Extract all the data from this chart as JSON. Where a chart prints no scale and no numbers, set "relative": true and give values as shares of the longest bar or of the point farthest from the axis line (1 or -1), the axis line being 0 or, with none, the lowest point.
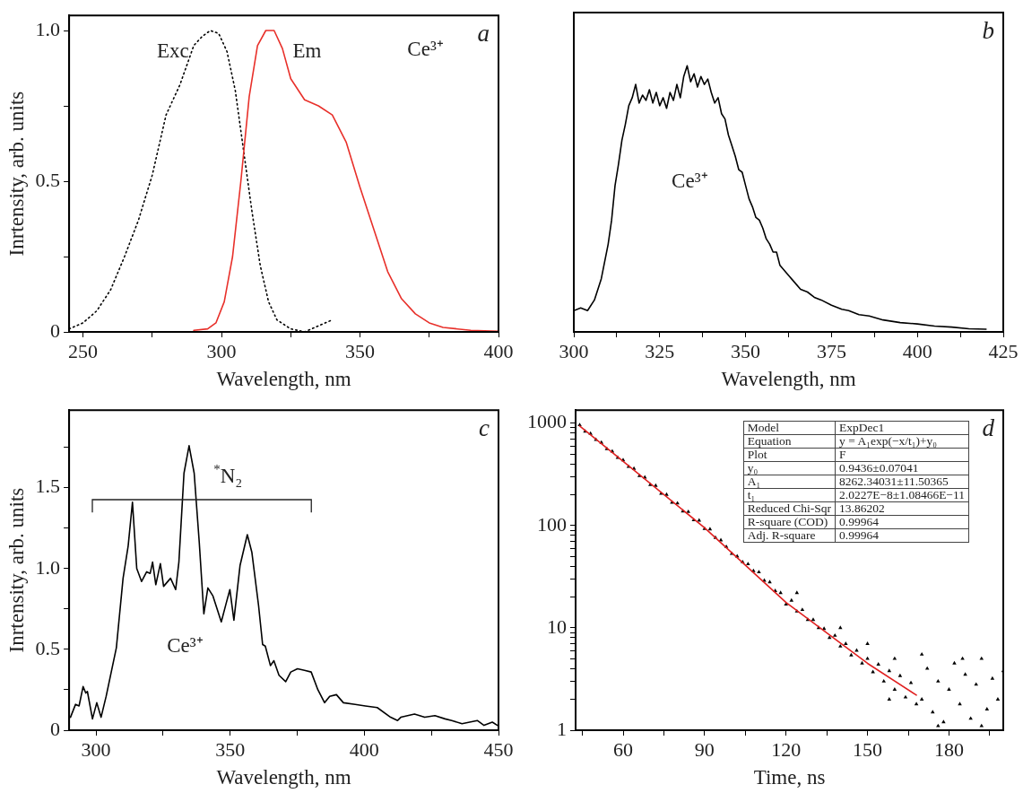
{
  "chart_data": [
    {
      "type": "line",
      "title": "a",
      "xlabel": "Wavelength, nm",
      "ylabel": "Inrtensity, arb. units",
      "xlim": [
        245,
        400
      ],
      "xticks": [
        250,
        {
          "value": 275,
          "label": null
        },
        300,
        {
          "value": 325,
          "label": null
        },
        350,
        {
          "value": 375,
          "label": null
        },
        400
      ],
      "ylim": [
        0,
        1.05
      ],
      "yticks": [
        0,
        {
          "value": 0.25,
          "label": null
        },
        0.5,
        {
          "value": 0.75,
          "label": null
        },
        {
          "value": 1,
          "label": "1.0"
        }
      ],
      "annotations": [
        "Ce³⁺"
      ],
      "series": [
        {
          "name": "Exc",
          "color": "#000000",
          "line_style": "dotted",
          "x": [
            245,
            250,
            255,
            260,
            265,
            270,
            275,
            280,
            285,
            290,
            293,
            296,
            299,
            302,
            305,
            308,
            311,
            314,
            317,
            320,
            325,
            330,
            335,
            340
          ],
          "values": [
            0.01,
            0.03,
            0.07,
            0.14,
            0.25,
            0.37,
            0.52,
            0.72,
            0.82,
            0.95,
            0.98,
            1.0,
            0.99,
            0.93,
            0.8,
            0.6,
            0.4,
            0.22,
            0.1,
            0.04,
            0.01,
            0.0,
            0.02,
            0.04
          ]
        },
        {
          "name": "Em",
          "color": "#e8302a",
          "line_style": "solid",
          "x": [
            290,
            295,
            298,
            301,
            304,
            307,
            310,
            313,
            316,
            319,
            322,
            325,
            330,
            335,
            340,
            345,
            350,
            355,
            360,
            365,
            370,
            375,
            380,
            390,
            400
          ],
          "values": [
            0.005,
            0.01,
            0.03,
            0.1,
            0.25,
            0.5,
            0.78,
            0.95,
            1.0,
            1.0,
            0.94,
            0.84,
            0.77,
            0.75,
            0.72,
            0.63,
            0.48,
            0.34,
            0.2,
            0.11,
            0.06,
            0.03,
            0.015,
            0.005,
            0.002
          ]
        }
      ]
    },
    {
      "type": "line",
      "title": "b",
      "xlabel": "Wavelength, nm",
      "relative": true,
      "xlim": [
        300,
        425
      ],
      "xticks": [
        300,
        {
          "value": 312.5,
          "label": null
        },
        325,
        {
          "value": 337.5,
          "label": null
        },
        350,
        {
          "value": 362.5,
          "label": null
        },
        375,
        {
          "value": 387.5,
          "label": null
        },
        400,
        {
          "value": 412.5,
          "label": null
        },
        425
      ],
      "annotations": [
        "Ce³⁺"
      ],
      "series": [
        {
          "color": "#000000",
          "x": [
            300,
            302,
            304,
            306,
            308,
            310,
            311,
            312,
            313,
            314,
            315,
            316,
            317,
            318,
            319,
            320,
            321,
            322,
            323,
            324,
            325,
            326,
            327,
            328,
            329,
            330,
            331,
            332,
            333,
            334,
            335,
            336,
            337,
            338,
            339,
            340,
            341,
            342,
            343,
            344,
            345,
            346,
            347,
            348,
            349,
            350,
            351,
            352,
            353,
            354,
            355,
            356,
            357,
            358,
            359,
            360,
            362,
            364,
            366,
            368,
            370,
            372,
            375,
            378,
            380,
            383,
            386,
            390,
            395,
            400,
            405,
            410,
            415,
            420
          ],
          "values": [
            0.08,
            0.09,
            0.08,
            0.12,
            0.2,
            0.33,
            0.42,
            0.55,
            0.63,
            0.72,
            0.78,
            0.85,
            0.88,
            0.93,
            0.86,
            0.89,
            0.87,
            0.91,
            0.86,
            0.9,
            0.85,
            0.88,
            0.84,
            0.9,
            0.87,
            0.93,
            0.88,
            0.96,
            1.0,
            0.94,
            0.97,
            0.92,
            0.96,
            0.93,
            0.95,
            0.9,
            0.86,
            0.88,
            0.82,
            0.8,
            0.74,
            0.7,
            0.66,
            0.61,
            0.6,
            0.55,
            0.5,
            0.47,
            0.43,
            0.42,
            0.39,
            0.35,
            0.33,
            0.3,
            0.3,
            0.25,
            0.22,
            0.19,
            0.16,
            0.15,
            0.13,
            0.12,
            0.1,
            0.085,
            0.08,
            0.065,
            0.06,
            0.045,
            0.035,
            0.03,
            0.022,
            0.018,
            0.012,
            0.01
          ]
        }
      ]
    },
    {
      "type": "line",
      "title": "c",
      "xlabel": "Wavelength, nm",
      "ylabel": "Inrtensity, arb. units",
      "xlim": [
        290,
        450
      ],
      "xticks": [
        300,
        {
          "value": 325,
          "label": null
        },
        350,
        {
          "value": 375,
          "label": null
        },
        400,
        {
          "value": 425,
          "label": null
        },
        450
      ],
      "ylim": [
        0,
        1.98
      ],
      "yticks": [
        0,
        {
          "value": 0.25,
          "label": null
        },
        0.5,
        {
          "value": 0.75,
          "label": null
        },
        {
          "value": 1,
          "label": "1.0"
        },
        {
          "value": 1.25,
          "label": null
        },
        1.5,
        {
          "value": 1.75,
          "label": null
        }
      ],
      "annotations": [
        "Ce³⁺",
        "$^{*}$N₂"
      ],
      "series": [
        {
          "color": "#000000",
          "x": [
            290.5,
            292.4,
            293.7,
            295.2,
            296.2,
            296.8,
            298.7,
            300.3,
            301.9,
            303.8,
            307.6,
            310.1,
            312.0,
            313.6,
            315.2,
            317.0,
            318.9,
            320.2,
            321.1,
            322.3,
            324.0,
            325.2,
            327.8,
            329.7,
            330.9,
            332.8,
            334.7,
            336.6,
            338.5,
            340.2,
            341.7,
            343.6,
            346.7,
            348.6,
            349.9,
            351.4,
            353.7,
            356.4,
            358.1,
            360.6,
            362.1,
            363.1,
            365.0,
            366.3,
            368.2,
            370.7,
            372.6,
            375.1,
            377.7,
            380.2,
            382.7,
            385.2,
            387.1,
            389.6,
            392.2,
            396.6,
            400.4,
            404.8,
            409.8,
            412.4,
            413.6,
            418.7,
            422.5,
            426.3,
            430.1,
            432.6,
            436.4,
            442.1,
            444.6,
            447.7,
            449.6
          ],
          "values": [
            0.08,
            0.16,
            0.15,
            0.27,
            0.23,
            0.24,
            0.07,
            0.17,
            0.08,
            0.21,
            0.51,
            0.94,
            1.14,
            1.41,
            1.0,
            0.92,
            0.98,
            0.97,
            1.04,
            0.9,
            1.03,
            0.89,
            0.94,
            0.87,
            1.04,
            1.59,
            1.76,
            1.59,
            1.16,
            0.72,
            0.88,
            0.83,
            0.67,
            0.79,
            0.87,
            0.68,
            1.02,
            1.21,
            1.1,
            0.77,
            0.53,
            0.52,
            0.4,
            0.43,
            0.34,
            0.3,
            0.36,
            0.38,
            0.37,
            0.36,
            0.25,
            0.17,
            0.21,
            0.22,
            0.17,
            0.16,
            0.15,
            0.14,
            0.08,
            0.06,
            0.08,
            0.1,
            0.08,
            0.09,
            0.07,
            0.06,
            0.04,
            0.06,
            0.03,
            0.05,
            0.03
          ]
        }
      ]
    },
    {
      "type": "scatter",
      "title": "d",
      "xlabel": "Time, ns",
      "log": "y",
      "xlim": [
        42.5,
        200
      ],
      "xticks": [
        {
          "value": 45,
          "label": null
        },
        60,
        {
          "value": 75,
          "label": null
        },
        90,
        {
          "value": 105,
          "label": null
        },
        120,
        {
          "value": 135,
          "label": null
        },
        150,
        {
          "value": 165,
          "label": null
        },
        180,
        {
          "value": 195,
          "label": null
        }
      ],
      "ylim": [
        1,
        1340
      ],
      "yticks": [
        1,
        {
          "value": 2,
          "label": null
        },
        {
          "value": 3,
          "label": null
        },
        {
          "value": 4,
          "label": null
        },
        {
          "value": 5,
          "label": null
        },
        {
          "value": 6,
          "label": null
        },
        {
          "value": 7,
          "label": null
        },
        {
          "value": 8,
          "label": null
        },
        {
          "value": 9,
          "label": null
        },
        10,
        {
          "value": 20,
          "label": null
        },
        {
          "value": 30,
          "label": null
        },
        {
          "value": 40,
          "label": null
        },
        {
          "value": 50,
          "label": null
        },
        {
          "value": 60,
          "label": null
        },
        {
          "value": 70,
          "label": null
        },
        {
          "value": 80,
          "label": null
        },
        {
          "value": 90,
          "label": null
        },
        100,
        {
          "value": 200,
          "label": null
        },
        {
          "value": 300,
          "label": null
        },
        {
          "value": 400,
          "label": null
        },
        {
          "value": 500,
          "label": null
        },
        {
          "value": 600,
          "label": null
        },
        {
          "value": 700,
          "label": null
        },
        {
          "value": 800,
          "label": null
        },
        {
          "value": 900,
          "label": null
        },
        1000
      ],
      "annotations": [
        "Model",
        "ExpDec1",
        "Equation",
        "y = A₁exp(−x/t₁)+y₀",
        "Plot",
        "F",
        "y₀",
        "0.9436±0.07041",
        "A₁",
        "8262.34031±11.50365",
        "t₁",
        "2.0227E−8±1.08466E−11",
        "Reduced Chi-Sqr",
        "13.86202",
        "R-square (COD)",
        "0.99964",
        "Adj. R-square",
        "0.99964"
      ],
      "series": [
        {
          "type": "scatter",
          "marker": "triangle",
          "color": "#000000",
          "x": [
            44,
            46,
            48,
            50,
            52,
            54,
            56,
            58,
            60,
            62,
            64,
            66,
            68,
            70,
            72,
            74,
            76,
            78,
            80,
            82,
            84,
            86,
            88,
            90,
            92,
            94,
            96,
            98,
            100,
            102,
            104,
            106,
            108,
            110,
            112,
            114,
            116,
            118,
            120,
            122,
            124,
            126,
            128,
            130,
            132,
            134,
            136,
            138,
            140,
            142,
            144,
            146,
            148,
            150,
            152,
            154,
            156,
            158,
            160,
            162,
            164,
            166,
            168,
            170,
            172,
            174,
            176,
            178,
            180,
            182,
            184,
            186,
            188,
            190,
            192,
            194,
            196,
            198,
            200,
            124,
            140,
            150,
            160,
            170,
            185,
            158,
            176,
            192
          ],
          "values": [
            960,
            830,
            790,
            690,
            645,
            560,
            530,
            460,
            435,
            375,
            360,
            305,
            295,
            250,
            245,
            205,
            200,
            168,
            165,
            138,
            136,
            113,
            112,
            93,
            92,
            76,
            72,
            62,
            53,
            50,
            44,
            42,
            36,
            35,
            29,
            28,
            23,
            22,
            17,
            18.5,
            14.5,
            15,
            12,
            12,
            10,
            9.8,
            8,
            8.4,
            6.6,
            7,
            5.4,
            6,
            4.5,
            5,
            3.7,
            4.4,
            3,
            3.8,
            2.5,
            3.4,
            2.1,
            2.9,
            1.8,
            2.0,
            4,
            1.5,
            3,
            1.2,
            2.5,
            4.5,
            1.8,
            3.5,
            1.3,
            2.8,
            5,
            1.6,
            3.2,
            2,
            3.8,
            22,
            10,
            7,
            5,
            5.5,
            5,
            2,
            1.1,
            1.1
          ]
        },
        {
          "type": "line",
          "marker": "none",
          "color": "#e02020",
          "x": [
            44,
            90,
            120,
            150,
            168
          ],
          "values": [
            940,
            95,
            17.7,
            4.5,
            2.2
          ]
        }
      ]
    }
  ]
}
